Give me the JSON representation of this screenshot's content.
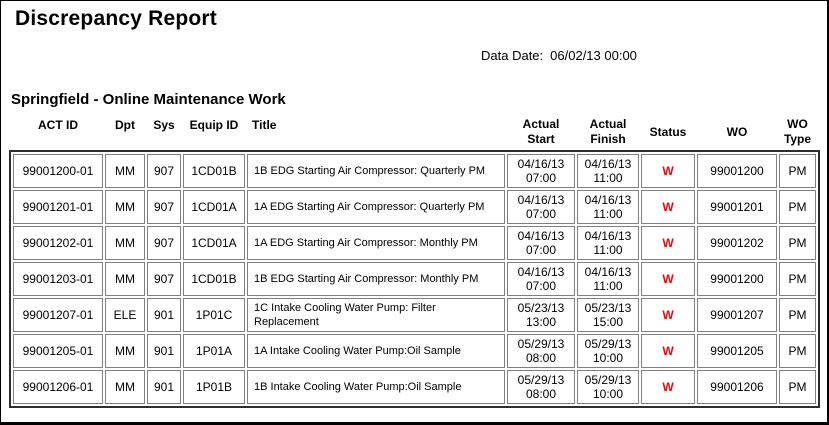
{
  "report": {
    "title": "Discrepancy Report",
    "data_date_label": "Data Date:",
    "data_date_value": "06/02/13 00:00",
    "section_title": "Springfield - Online Maintenance Work"
  },
  "colors": {
    "status_warning": "#ff0000",
    "cell_border": "#808080",
    "table_frame": "#2e2e2e"
  },
  "table": {
    "columns": [
      {
        "key": "act_id",
        "label": "ACT ID"
      },
      {
        "key": "dpt",
        "label": "Dpt"
      },
      {
        "key": "sys",
        "label": "Sys"
      },
      {
        "key": "equip_id",
        "label": "Equip ID"
      },
      {
        "key": "title",
        "label": "Title"
      },
      {
        "key": "actual_start",
        "label": "Actual Start"
      },
      {
        "key": "actual_finish",
        "label": "Actual Finish"
      },
      {
        "key": "status",
        "label": "Status"
      },
      {
        "key": "wo",
        "label": "WO"
      },
      {
        "key": "wo_type",
        "label": "WO Type"
      }
    ],
    "rows": [
      {
        "act_id": "99001200-01",
        "dpt": "MM",
        "sys": "907",
        "equip_id": "1CD01B",
        "title": "1B EDG Starting Air Compressor: Quarterly PM",
        "actual_start": "04/16/13 07:00",
        "actual_finish": "04/16/13 11:00",
        "status": "W",
        "wo": "99001200",
        "wo_type": "PM"
      },
      {
        "act_id": "99001201-01",
        "dpt": "MM",
        "sys": "907",
        "equip_id": "1CD01A",
        "title": "1A EDG Starting Air Compressor: Quarterly PM",
        "actual_start": "04/16/13 07:00",
        "actual_finish": "04/16/13 11:00",
        "status": "W",
        "wo": "99001201",
        "wo_type": "PM"
      },
      {
        "act_id": "99001202-01",
        "dpt": "MM",
        "sys": "907",
        "equip_id": "1CD01A",
        "title": "1A EDG Starting Air Compressor: Monthly PM",
        "actual_start": "04/16/13 07:00",
        "actual_finish": "04/16/13 11:00",
        "status": "W",
        "wo": "99001202",
        "wo_type": "PM"
      },
      {
        "act_id": "99001203-01",
        "dpt": "MM",
        "sys": "907",
        "equip_id": "1CD01B",
        "title": "1B EDG Starting Air Compressor: Monthly PM",
        "actual_start": "04/16/13 07:00",
        "actual_finish": "04/16/13 11:00",
        "status": "W",
        "wo": "99001200",
        "wo_type": "PM"
      },
      {
        "act_id": "99001207-01",
        "dpt": "ELE",
        "sys": "901",
        "equip_id": "1P01C",
        "title": "1C Intake Cooling Water Pump: Filter Replacement",
        "actual_start": "05/23/13 13:00",
        "actual_finish": "05/23/13 15:00",
        "status": "W",
        "wo": "99001207",
        "wo_type": "PM"
      },
      {
        "act_id": "99001205-01",
        "dpt": "MM",
        "sys": "901",
        "equip_id": "1P01A",
        "title": "1A Intake Cooling Water Pump:Oil Sample",
        "actual_start": "05/29/13 08:00",
        "actual_finish": "05/29/13 10:00",
        "status": "W",
        "wo": "99001205",
        "wo_type": "PM"
      },
      {
        "act_id": "99001206-01",
        "dpt": "MM",
        "sys": "901",
        "equip_id": "1P01B",
        "title": "1B Intake Cooling Water Pump:Oil Sample",
        "actual_start": "05/29/13 08:00",
        "actual_finish": "05/29/13 10:00",
        "status": "W",
        "wo": "99001206",
        "wo_type": "PM"
      }
    ]
  }
}
